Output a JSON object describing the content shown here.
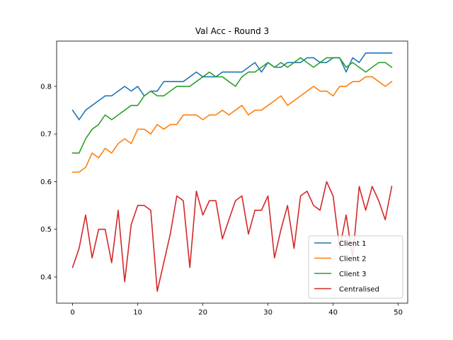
{
  "chart_data": {
    "type": "line",
    "title": "Val Acc - Round 3",
    "xlabel": "",
    "ylabel": "",
    "xlim": [
      -2.45,
      51.45
    ],
    "ylim": [
      0.345,
      0.895
    ],
    "xticks": [
      0,
      10,
      20,
      30,
      40,
      50
    ],
    "yticks": [
      0.4,
      0.5,
      0.6,
      0.7,
      0.8
    ],
    "xtick_labels": [
      "0",
      "10",
      "20",
      "30",
      "40",
      "50"
    ],
    "ytick_labels": [
      "0.4",
      "0.5",
      "0.6",
      "0.7",
      "0.8"
    ],
    "grid": false,
    "legend_position": "lower-right",
    "x": [
      0,
      1,
      2,
      3,
      4,
      5,
      6,
      7,
      8,
      9,
      10,
      11,
      12,
      13,
      14,
      15,
      16,
      17,
      18,
      19,
      20,
      21,
      22,
      23,
      24,
      25,
      26,
      27,
      28,
      29,
      30,
      31,
      32,
      33,
      34,
      35,
      36,
      37,
      38,
      39,
      40,
      41,
      42,
      43,
      44,
      45,
      46,
      47,
      48,
      49
    ],
    "series": [
      {
        "name": "Client 1",
        "color": "#1f77b4",
        "values": [
          0.75,
          0.73,
          0.75,
          0.76,
          0.77,
          0.78,
          0.78,
          0.79,
          0.8,
          0.79,
          0.8,
          0.78,
          0.79,
          0.79,
          0.81,
          0.81,
          0.81,
          0.81,
          0.82,
          0.83,
          0.82,
          0.82,
          0.82,
          0.83,
          0.83,
          0.83,
          0.83,
          0.84,
          0.85,
          0.83,
          0.85,
          0.84,
          0.84,
          0.85,
          0.85,
          0.85,
          0.86,
          0.86,
          0.85,
          0.85,
          0.86,
          0.86,
          0.83,
          0.86,
          0.85,
          0.87,
          0.87,
          0.87,
          0.87,
          0.87
        ]
      },
      {
        "name": "Client 2",
        "color": "#ff7f0e",
        "values": [
          0.62,
          0.62,
          0.63,
          0.66,
          0.65,
          0.67,
          0.66,
          0.68,
          0.69,
          0.68,
          0.71,
          0.71,
          0.7,
          0.72,
          0.71,
          0.72,
          0.72,
          0.74,
          0.74,
          0.74,
          0.73,
          0.74,
          0.74,
          0.75,
          0.74,
          0.75,
          0.76,
          0.74,
          0.75,
          0.75,
          0.76,
          0.77,
          0.78,
          0.76,
          0.77,
          0.78,
          0.79,
          0.8,
          0.79,
          0.79,
          0.78,
          0.8,
          0.8,
          0.81,
          0.81,
          0.82,
          0.82,
          0.81,
          0.8,
          0.81
        ]
      },
      {
        "name": "Client 3",
        "color": "#2ca02c",
        "values": [
          0.66,
          0.66,
          0.69,
          0.71,
          0.72,
          0.74,
          0.73,
          0.74,
          0.75,
          0.76,
          0.76,
          0.78,
          0.79,
          0.78,
          0.78,
          0.79,
          0.8,
          0.8,
          0.8,
          0.81,
          0.82,
          0.83,
          0.82,
          0.82,
          0.81,
          0.8,
          0.82,
          0.83,
          0.83,
          0.84,
          0.85,
          0.84,
          0.85,
          0.84,
          0.85,
          0.86,
          0.85,
          0.84,
          0.85,
          0.86,
          0.86,
          0.86,
          0.84,
          0.85,
          0.84,
          0.83,
          0.84,
          0.85,
          0.85,
          0.84
        ]
      },
      {
        "name": "Centralised",
        "color": "#d62728",
        "values": [
          0.42,
          0.46,
          0.53,
          0.44,
          0.5,
          0.5,
          0.43,
          0.54,
          0.39,
          0.51,
          0.55,
          0.55,
          0.54,
          0.37,
          0.43,
          0.49,
          0.57,
          0.56,
          0.42,
          0.58,
          0.53,
          0.56,
          0.56,
          0.48,
          0.52,
          0.56,
          0.57,
          0.49,
          0.54,
          0.54,
          0.57,
          0.44,
          0.5,
          0.55,
          0.46,
          0.57,
          0.58,
          0.55,
          0.54,
          0.6,
          0.57,
          0.46,
          0.53,
          0.44,
          0.59,
          0.54,
          0.59,
          0.56,
          0.52,
          0.59
        ]
      }
    ]
  }
}
